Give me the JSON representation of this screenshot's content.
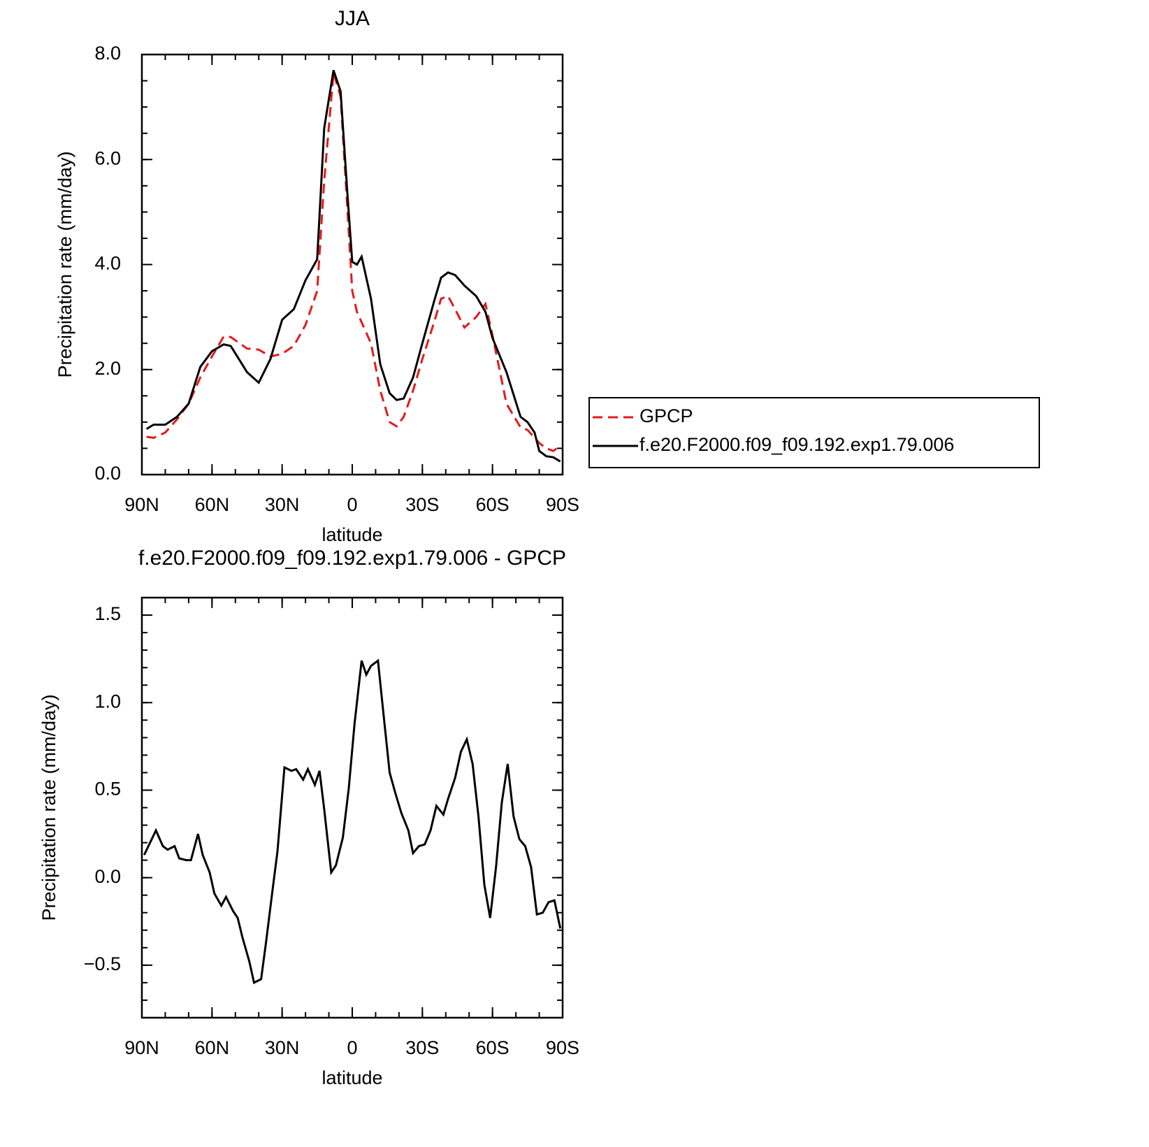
{
  "chart_data": [
    {
      "type": "line",
      "title": "JJA",
      "xlabel": "latitude",
      "ylabel": "Precipitation rate (mm/day)",
      "x": [
        88,
        85,
        80,
        75,
        70,
        65,
        60,
        55,
        52,
        45,
        40,
        35,
        30,
        25,
        20,
        15,
        12,
        8,
        5,
        2,
        0,
        -2,
        -4,
        -8,
        -12,
        -16,
        -19,
        -22,
        -26,
        -30,
        -35,
        -38,
        -41,
        -44,
        -48,
        -53,
        -57,
        -60,
        -66,
        -72,
        -75,
        -78,
        -80,
        -83,
        -86,
        -89
      ],
      "series": [
        {
          "name": "GPCP",
          "color": "#e41a1c",
          "dash": true,
          "values": [
            0.72,
            0.7,
            0.8,
            1.05,
            1.35,
            1.85,
            2.25,
            2.63,
            2.62,
            2.4,
            2.38,
            2.25,
            2.3,
            2.45,
            2.85,
            3.5,
            5.6,
            7.65,
            7.2,
            5.0,
            3.5,
            3.1,
            2.9,
            2.5,
            1.6,
            1.0,
            0.92,
            1.1,
            1.6,
            2.2,
            2.9,
            3.35,
            3.4,
            3.15,
            2.8,
            3.0,
            3.25,
            2.65,
            1.35,
            0.9,
            0.85,
            0.7,
            0.6,
            0.5,
            0.45,
            0.55
          ]
        },
        {
          "name": "f.e20.F2000.f09_f09.192.exp1.79.006",
          "color": "#000000",
          "dash": false,
          "values": [
            0.87,
            0.95,
            0.95,
            1.1,
            1.35,
            2.05,
            2.35,
            2.48,
            2.45,
            1.95,
            1.75,
            2.2,
            2.95,
            3.15,
            3.7,
            4.1,
            6.6,
            7.7,
            7.3,
            5.3,
            4.05,
            4.0,
            4.15,
            3.35,
            2.1,
            1.55,
            1.42,
            1.45,
            1.85,
            2.5,
            3.3,
            3.75,
            3.85,
            3.8,
            3.6,
            3.4,
            3.1,
            2.6,
            1.95,
            1.1,
            1.0,
            0.8,
            0.45,
            0.35,
            0.33,
            0.25
          ]
        }
      ],
      "xlim": [
        90,
        -90
      ],
      "xticks": [
        {
          "value": 90,
          "label": "90N"
        },
        {
          "value": 60,
          "label": "60N"
        },
        {
          "value": 30,
          "label": "30N"
        },
        0,
        {
          "value": -30,
          "label": "30S"
        },
        {
          "value": -60,
          "label": "60S"
        },
        {
          "value": -90,
          "label": "90S"
        }
      ],
      "ylim": [
        0,
        8
      ],
      "yticks": [
        {
          "value": 0,
          "label": "0.0"
        },
        {
          "value": 2,
          "label": "2.0"
        },
        {
          "value": 4,
          "label": "4.0"
        },
        {
          "value": 6,
          "label": "6.0"
        },
        {
          "value": 8,
          "label": "8.0"
        }
      ],
      "legend": "right"
    },
    {
      "type": "line",
      "title": "f.e20.F2000.f09_f09.192.exp1.79.006 - GPCP",
      "xlabel": "latitude",
      "ylabel": "Precipitation rate (mm/day)",
      "x": [
        89,
        84,
        81,
        79,
        76,
        74,
        71,
        69,
        66,
        64,
        61,
        59,
        56,
        54,
        51,
        49,
        47,
        44,
        42,
        39,
        37,
        34,
        32,
        29,
        26,
        24,
        21,
        19,
        16,
        14,
        12,
        9,
        7,
        4,
        1.5,
        -1,
        -4,
        -6,
        -8,
        -11,
        -13.5,
        -16,
        -18.5,
        -21,
        -24,
        -26,
        -28.5,
        -31,
        -33.5,
        -36,
        -39,
        -41,
        -44,
        -46.5,
        -49,
        -51.5,
        -54,
        -56.5,
        -59,
        -61.5,
        -64,
        -66.5,
        -69,
        -71.5,
        -74,
        -76.5,
        -79,
        -81.5,
        -84,
        -86.5,
        -89
      ],
      "values": [
        0.13,
        0.27,
        0.18,
        0.16,
        0.18,
        0.11,
        0.1,
        0.1,
        0.25,
        0.13,
        0.03,
        -0.09,
        -0.16,
        -0.11,
        -0.19,
        -0.23,
        -0.34,
        -0.48,
        -0.6,
        -0.58,
        -0.38,
        -0.06,
        0.15,
        0.63,
        0.61,
        0.62,
        0.56,
        0.62,
        0.53,
        0.61,
        0.39,
        0.03,
        0.07,
        0.23,
        0.51,
        0.88,
        1.24,
        1.16,
        1.21,
        1.24,
        0.92,
        0.6,
        0.48,
        0.37,
        0.27,
        0.14,
        0.18,
        0.19,
        0.27,
        0.41,
        0.36,
        0.45,
        0.57,
        0.72,
        0.79,
        0.65,
        0.35,
        -0.04,
        -0.23,
        0.06,
        0.43,
        0.65,
        0.35,
        0.22,
        0.18,
        0.06,
        -0.21,
        -0.2,
        -0.14,
        -0.13,
        -0.29
      ],
      "color": "#000000",
      "xlim": [
        90,
        -90
      ],
      "xticks": [
        {
          "value": 90,
          "label": "90N"
        },
        {
          "value": 60,
          "label": "60N"
        },
        {
          "value": 30,
          "label": "30N"
        },
        0,
        {
          "value": -30,
          "label": "30S"
        },
        {
          "value": -60,
          "label": "60S"
        },
        {
          "value": -90,
          "label": "90S"
        }
      ],
      "ylim": [
        -0.8,
        1.6
      ],
      "yticks": [
        {
          "value": -0.5,
          "label": "−0.5"
        },
        {
          "value": 0,
          "label": "0.0"
        },
        0.5,
        {
          "value": 1,
          "label": "1.0"
        },
        1.5
      ]
    }
  ]
}
